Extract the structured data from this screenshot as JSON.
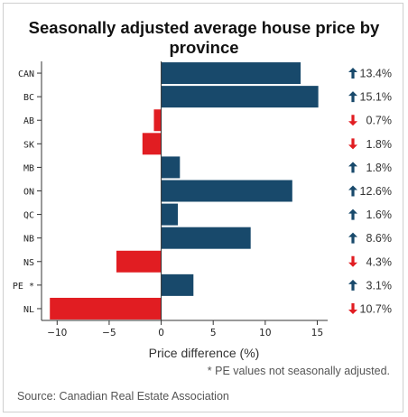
{
  "chart_data": {
    "type": "bar",
    "orientation": "horizontal",
    "title_lines": [
      "Seasonally adjusted average house price by",
      "province"
    ],
    "xlabel": "Price difference (%)",
    "ylabel": "",
    "xlim": [
      -11.5,
      16
    ],
    "xticks": [
      -10,
      -5,
      0,
      5,
      10,
      15
    ],
    "grid": false,
    "legend": "none",
    "categories": [
      "CAN",
      "BC",
      "AB",
      "SK",
      "MB",
      "ON",
      "QC",
      "NB",
      "NS",
      "PE *",
      "NL"
    ],
    "values": [
      13.4,
      15.1,
      -0.7,
      -1.8,
      1.8,
      12.6,
      1.6,
      8.6,
      -4.3,
      3.1,
      -10.7
    ],
    "value_labels": [
      "13.4%",
      "15.1%",
      "0.7%",
      "1.8%",
      "1.8%",
      "12.6%",
      "1.6%",
      "8.6%",
      "4.3%",
      "3.1%",
      "10.7%"
    ],
    "directions": [
      "up",
      "up",
      "down",
      "down",
      "up",
      "up",
      "up",
      "up",
      "down",
      "up",
      "down"
    ],
    "colors": {
      "positive": "#18496b",
      "negative": "#e11d22",
      "up_arrow": "#18496b",
      "down_arrow": "#e11d22"
    },
    "footnote": "* PE values not seasonally adjusted.",
    "source": "Source: Canadian Real Estate Association"
  }
}
